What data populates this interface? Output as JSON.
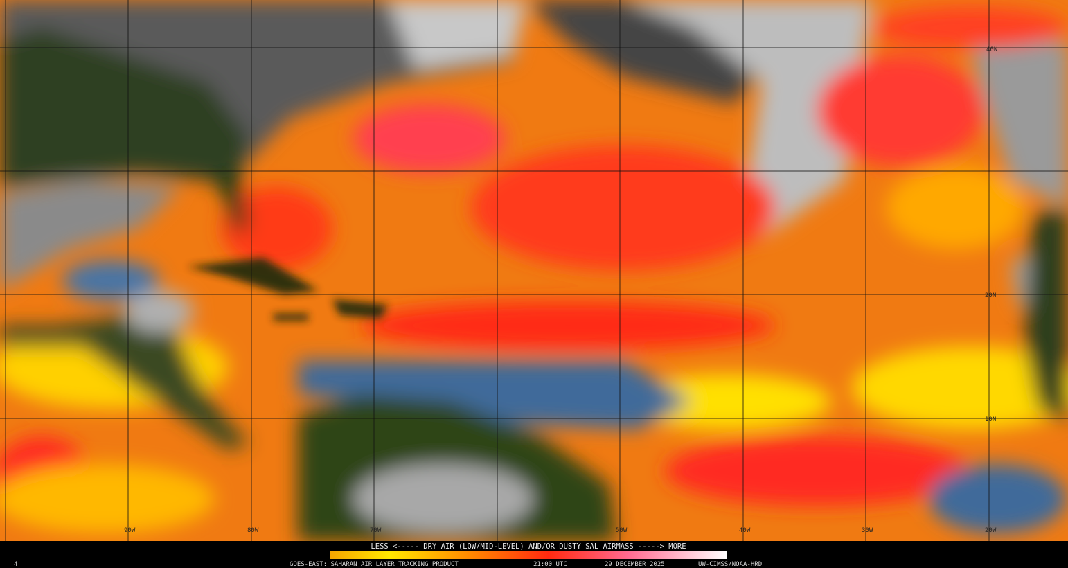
{
  "map": {
    "latitude_labels": [
      "40N",
      "20N",
      "10N"
    ],
    "longitude_labels": [
      "90W",
      "80W",
      "70W",
      "50W",
      "40W",
      "30W",
      "20W"
    ],
    "legend_caption": "LESS <----- DRY AIR (LOW/MID-LEVEL) AND/OR DUSTY SAL AIRMASS -----> MORE"
  },
  "footer": {
    "frame": "4",
    "product": "GOES-EAST: SAHARAN AIR LAYER TRACKING PRODUCT",
    "time": "21:00 UTC",
    "date": "29 DECEMBER 2025",
    "credit": "UW-CIMSS/NOAA-HRD"
  }
}
